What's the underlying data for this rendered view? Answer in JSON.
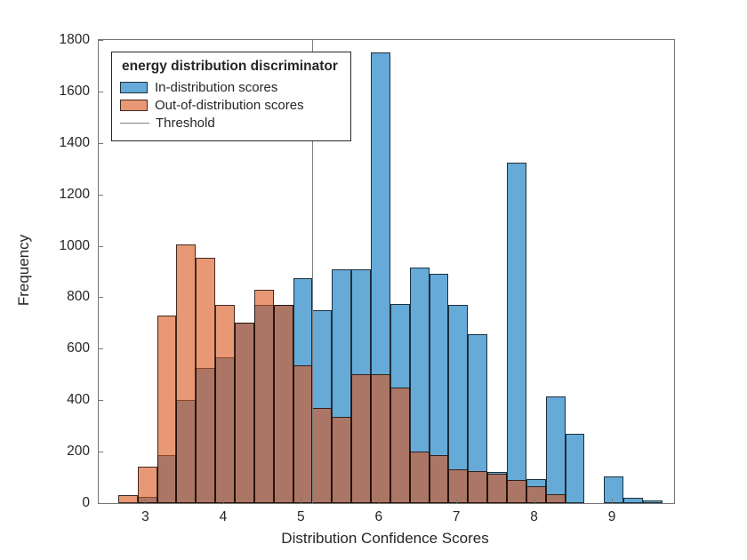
{
  "legend": {
    "title": "energy distribution discriminator",
    "items": [
      {
        "label": "In-distribution scores"
      },
      {
        "label": "Out-of-distribution scores"
      },
      {
        "label": "Threshold"
      }
    ]
  },
  "chart_data": {
    "type": "bar",
    "subtype": "overlaid-histograms",
    "title": "energy distribution discriminator",
    "xlabel": "Distribution Confidence Scores",
    "ylabel": "Frequency",
    "grid": false,
    "legend_position": "top-left-inside",
    "xlim": [
      2.4,
      9.8
    ],
    "ylim": [
      0,
      1800
    ],
    "x_ticks": [
      3,
      4,
      5,
      6,
      7,
      8,
      9
    ],
    "y_ticks": [
      0,
      200,
      400,
      600,
      800,
      1000,
      1200,
      1400,
      1600,
      1800
    ],
    "bin_width": 0.25,
    "bin_left_edges": [
      2.4,
      2.65,
      2.9,
      3.15,
      3.4,
      3.65,
      3.9,
      4.15,
      4.4,
      4.65,
      4.9,
      5.15,
      5.4,
      5.65,
      5.9,
      6.15,
      6.4,
      6.65,
      6.9,
      7.15,
      7.4,
      7.65,
      7.9,
      8.15,
      8.4,
      8.65,
      8.9,
      9.15,
      9.4
    ],
    "series": [
      {
        "name": "In-distribution scores",
        "face_color": "rgba(0,114,189,0.6)",
        "base_color": "#0072BD",
        "values": [
          0,
          0,
          25,
          185,
          400,
          525,
          565,
          700,
          770,
          770,
          875,
          750,
          910,
          910,
          1750,
          775,
          915,
          890,
          770,
          655,
          120,
          1325,
          95,
          415,
          270,
          0,
          105,
          20,
          12
        ]
      },
      {
        "name": "Out-of-distribution scores",
        "face_color": "rgba(217,83,25,0.6)",
        "base_color": "#D95319",
        "values": [
          0,
          30,
          140,
          730,
          1005,
          955,
          770,
          700,
          830,
          770,
          535,
          370,
          335,
          500,
          500,
          450,
          200,
          185,
          130,
          125,
          115,
          90,
          65,
          35,
          0,
          0,
          0,
          0,
          0
        ]
      }
    ],
    "threshold": {
      "x": 5.15,
      "color": "#7f7f7f",
      "label": "Threshold"
    }
  }
}
